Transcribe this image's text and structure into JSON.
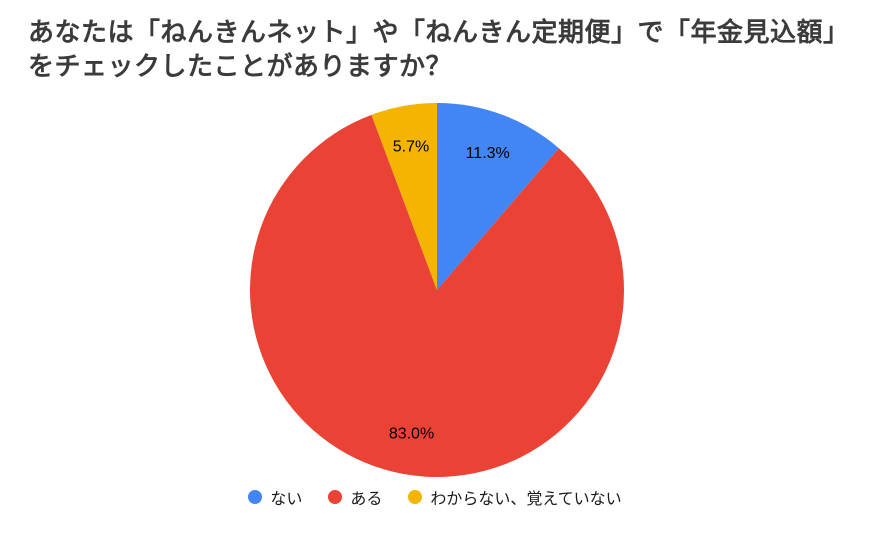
{
  "chart_data": {
    "type": "pie",
    "title": "あなたは「ねんきんネット」や「ねんきん定期便」で「年金見込額」をチェックしたことがありますか？",
    "labels": [
      "ない",
      "ある",
      "わからない、覚えていない"
    ],
    "values": [
      11.3,
      83.0,
      5.7
    ],
    "value_labels": [
      "11.3%",
      "83.0%",
      "5.7%"
    ],
    "colors": [
      "#4285F4",
      "#EA4335",
      "#F4B400"
    ],
    "label_color": "#000000",
    "direction": "clockwise",
    "start_angle_deg": 0,
    "legend_position": "bottom",
    "background": "#ffffff"
  }
}
